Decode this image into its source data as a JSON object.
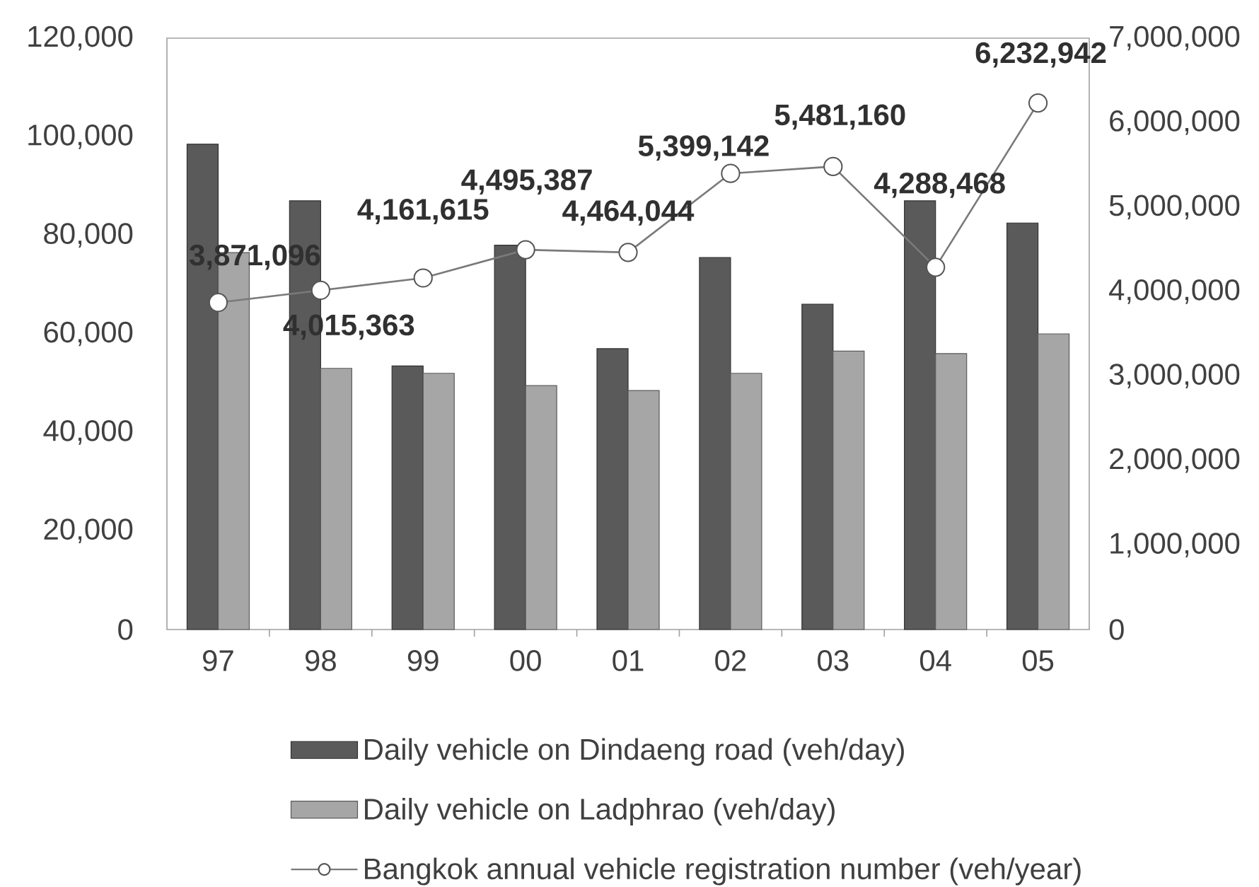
{
  "chart_data": {
    "type": "bar",
    "categories": [
      "97",
      "98",
      "99",
      "00",
      "01",
      "02",
      "03",
      "04",
      "05"
    ],
    "series": [
      {
        "name": "Daily vehicle on Dindaeng road (veh/day)",
        "color": "#5a5a5a",
        "values": [
          98500,
          87000,
          53500,
          78000,
          57000,
          75500,
          66000,
          87000,
          82500
        ]
      },
      {
        "name": "Daily vehicle on Ladphrao (veh/day)",
        "color": "#a6a6a6",
        "values": [
          76500,
          53000,
          52000,
          49500,
          48500,
          52000,
          56500,
          56000,
          60000
        ]
      },
      {
        "name": "Bangkok annual vehicle registration number (veh/year)",
        "type": "line",
        "axis": "y2",
        "color": "#7a7a7a",
        "marker": "circle",
        "line_style": "solid",
        "values": [
          3871096,
          4015363,
          4161615,
          4495387,
          4464044,
          5399142,
          5481160,
          4288468,
          6232942
        ],
        "value_labels": [
          "3,871,096",
          "4,015,363",
          "4,161,615",
          "4,495,387",
          "4,464,044",
          "5,399,142",
          "5,481,160",
          "4,288,468",
          "6,232,942"
        ]
      }
    ],
    "ylim": [
      0,
      120000
    ],
    "yticks": [
      0,
      {
        "value": 20000,
        "label": "20,000"
      },
      {
        "value": 40000,
        "label": "40,000"
      },
      {
        "value": 60000,
        "label": "60,000"
      },
      {
        "value": 80000,
        "label": "80,000"
      },
      {
        "value": 100000,
        "label": "100,000"
      },
      {
        "value": 120000,
        "label": "120,000"
      }
    ],
    "y2lim": [
      0,
      7000000
    ],
    "y2ticks": [
      0,
      {
        "value": 1000000,
        "label": "1,000,000"
      },
      {
        "value": 2000000,
        "label": "2,000,000"
      },
      {
        "value": 3000000,
        "label": "3,000,000"
      },
      {
        "value": 4000000,
        "label": "4,000,000"
      },
      {
        "value": 5000000,
        "label": "5,000,000"
      },
      {
        "value": 6000000,
        "label": "6,000,000"
      },
      {
        "value": 7000000,
        "label": "7,000,000"
      }
    ],
    "legend": "bottom"
  }
}
